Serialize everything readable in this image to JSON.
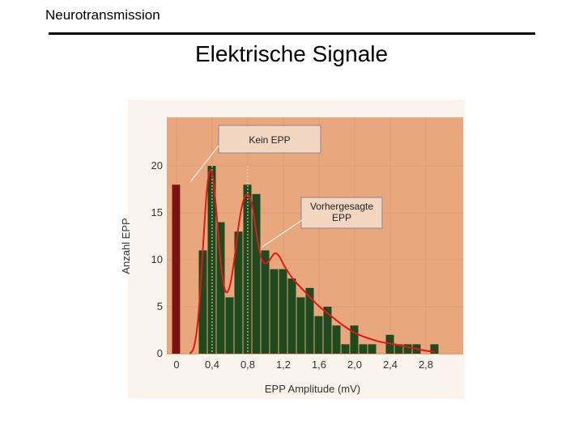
{
  "header": {
    "label": "Neurotransmission",
    "title": "Elektrische Signale"
  },
  "colors": {
    "plot_background": "#e8a77c",
    "bar_fill": "#1e4a1e",
    "first_bar_fill": "#7a1414",
    "curve": "#e01818",
    "callout_fill": "#f2d6c2"
  },
  "chart_data": {
    "type": "bar",
    "title": "",
    "xlabel": "EPP Amplitude (mV)",
    "ylabel": "Anzahl EPP",
    "ylim": [
      0,
      22
    ],
    "xlim": [
      -0.05,
      3.0
    ],
    "grid": true,
    "x_ticks": [
      "0",
      "0,4",
      "0,8",
      "1,2",
      "1,6",
      "2,0",
      "2,4",
      "2,8"
    ],
    "y_ticks": [
      "0",
      "5",
      "10",
      "15",
      "20"
    ],
    "bin_width": 0.1,
    "bins": [
      {
        "x": 0.0,
        "value": 18
      },
      {
        "x": 0.3,
        "value": 11
      },
      {
        "x": 0.4,
        "value": 20
      },
      {
        "x": 0.5,
        "value": 14
      },
      {
        "x": 0.6,
        "value": 6
      },
      {
        "x": 0.7,
        "value": 13
      },
      {
        "x": 0.8,
        "value": 18
      },
      {
        "x": 0.9,
        "value": 17
      },
      {
        "x": 1.0,
        "value": 11
      },
      {
        "x": 1.1,
        "value": 9
      },
      {
        "x": 1.2,
        "value": 9
      },
      {
        "x": 1.3,
        "value": 8
      },
      {
        "x": 1.4,
        "value": 6
      },
      {
        "x": 1.5,
        "value": 7
      },
      {
        "x": 1.6,
        "value": 4
      },
      {
        "x": 1.7,
        "value": 5
      },
      {
        "x": 1.8,
        "value": 3
      },
      {
        "x": 1.9,
        "value": 1
      },
      {
        "x": 2.0,
        "value": 3
      },
      {
        "x": 2.1,
        "value": 1
      },
      {
        "x": 2.2,
        "value": 1
      },
      {
        "x": 2.4,
        "value": 2
      },
      {
        "x": 2.5,
        "value": 1
      },
      {
        "x": 2.6,
        "value": 1
      },
      {
        "x": 2.7,
        "value": 1
      },
      {
        "x": 2.9,
        "value": 1
      }
    ],
    "predicted_curve": [
      [
        0.15,
        0
      ],
      [
        0.2,
        0.5
      ],
      [
        0.25,
        4
      ],
      [
        0.3,
        12
      ],
      [
        0.35,
        19
      ],
      [
        0.4,
        20
      ],
      [
        0.45,
        15
      ],
      [
        0.5,
        9
      ],
      [
        0.55,
        6.2
      ],
      [
        0.6,
        7
      ],
      [
        0.65,
        10
      ],
      [
        0.7,
        14
      ],
      [
        0.75,
        16.5
      ],
      [
        0.8,
        17.2
      ],
      [
        0.85,
        16
      ],
      [
        0.9,
        12.5
      ],
      [
        0.95,
        10
      ],
      [
        1.0,
        9.5
      ],
      [
        1.05,
        10
      ],
      [
        1.1,
        10.8
      ],
      [
        1.15,
        10.5
      ],
      [
        1.2,
        9.5
      ],
      [
        1.3,
        8
      ],
      [
        1.4,
        7
      ],
      [
        1.5,
        6
      ],
      [
        1.6,
        5
      ],
      [
        1.7,
        4.3
      ],
      [
        1.8,
        3.5
      ],
      [
        1.9,
        2.8
      ],
      [
        2.0,
        2.2
      ],
      [
        2.1,
        1.8
      ],
      [
        2.2,
        1.5
      ],
      [
        2.3,
        1.2
      ],
      [
        2.4,
        1.1
      ],
      [
        2.5,
        0.9
      ],
      [
        2.6,
        0.7
      ],
      [
        2.7,
        0.5
      ],
      [
        2.8,
        0.3
      ],
      [
        2.9,
        0.2
      ]
    ],
    "annotations": [
      {
        "name": "kein-epp",
        "text": "Kein EPP",
        "target_x": 0.05,
        "target_y": 18
      },
      {
        "name": "vorhergesagte-epp",
        "text": [
          "Vorhergesagte",
          "EPP"
        ],
        "target_x": 1.05,
        "target_y": 11
      }
    ]
  }
}
